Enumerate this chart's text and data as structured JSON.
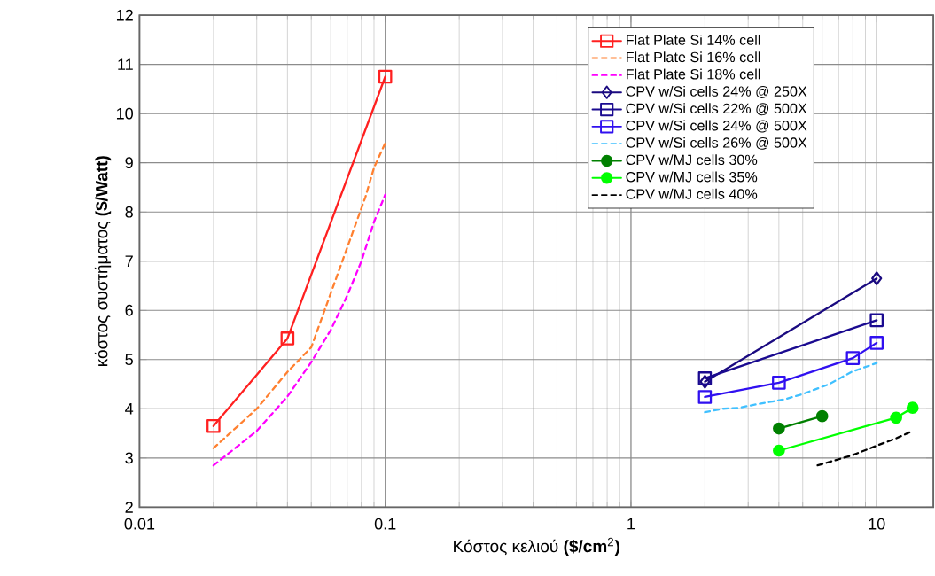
{
  "chart_data": {
    "type": "line",
    "xlabel": "Κόστος κελιού  **($/cm**$^{2}$**)**",
    "ylabel": "κόστος συστήματος **($/Watt)**",
    "log": "x",
    "xlim": [
      0.01,
      17
    ],
    "ylim": [
      2,
      12
    ],
    "xticks": [
      0.01,
      0.1,
      1,
      10
    ],
    "yticks": [
      2,
      3,
      4,
      5,
      6,
      7,
      8,
      9,
      10,
      11,
      12
    ],
    "grid": true,
    "legend": "top right",
    "series": [
      {
        "name": "Flat Plate Si 14% cell",
        "color": "#ff2020",
        "marker": "square",
        "line_style": "solid",
        "x": [
          0.02,
          0.04,
          0.1
        ],
        "values": [
          3.65,
          5.43,
          10.75
        ]
      },
      {
        "name": "Flat Plate Si 16% cell",
        "color": "#ff8030",
        "marker": "none",
        "line_style": "dashed",
        "x": [
          0.02,
          0.03,
          0.04,
          0.05,
          0.083,
          0.09,
          0.1
        ],
        "values": [
          3.2,
          4.0,
          4.75,
          5.25,
          8.3,
          8.9,
          9.4
        ]
      },
      {
        "name": "Flat Plate Si 18% cell",
        "color": "#ff00ff",
        "marker": "none",
        "line_style": "dashed",
        "x": [
          0.02,
          0.03,
          0.04,
          0.05,
          0.06,
          0.07,
          0.08,
          0.09,
          0.1
        ],
        "values": [
          2.85,
          3.55,
          4.25,
          4.95,
          5.6,
          6.3,
          7.0,
          7.8,
          8.35
        ]
      },
      {
        "name": "CPV w/Si cells 24%  @  250X",
        "color": "#1a0a80",
        "marker": "diamond",
        "line_style": "solid",
        "x": [
          2,
          10
        ],
        "values": [
          4.55,
          6.65
        ]
      },
      {
        "name": "CPV w/Si cells 22%  @  500X",
        "color": "#1a0a90",
        "marker": "square",
        "line_style": "solid",
        "x": [
          2,
          10
        ],
        "values": [
          4.62,
          5.8
        ]
      },
      {
        "name": "CPV w/Si cells 24%  @  500X",
        "color": "#3010f0",
        "marker": "square",
        "line_style": "solid",
        "x": [
          2,
          4,
          8,
          10
        ],
        "values": [
          4.24,
          4.53,
          5.03,
          5.34
        ]
      },
      {
        "name": "CPV w/Si cells 26%  @  500X",
        "color": "#40c0ff",
        "marker": "none",
        "line_style": "dashed",
        "x": [
          2,
          2.35,
          2.75,
          3.3,
          4.2,
          5,
          6.4,
          7.9,
          10
        ],
        "values": [
          3.93,
          4.0,
          4.02,
          4.1,
          4.19,
          4.3,
          4.5,
          4.75,
          4.93
        ]
      },
      {
        "name": "CPV w/MJ cells 30%",
        "color": "#008000",
        "marker": "circle",
        "line_style": "solid",
        "x": [
          4,
          6
        ],
        "values": [
          3.6,
          3.85
        ]
      },
      {
        "name": "CPV w/MJ cells 35%",
        "color": "#00ff00",
        "marker": "circle",
        "line_style": "solid",
        "x": [
          4,
          12,
          14
        ],
        "values": [
          3.15,
          3.82,
          4.02
        ]
      },
      {
        "name": "CPV w/MJ cells 40%",
        "color": "#000000",
        "marker": "none",
        "line_style": "dashed",
        "x": [
          5.75,
          7.9,
          10,
          12,
          14
        ],
        "values": [
          2.85,
          3.05,
          3.25,
          3.4,
          3.55
        ]
      }
    ]
  }
}
